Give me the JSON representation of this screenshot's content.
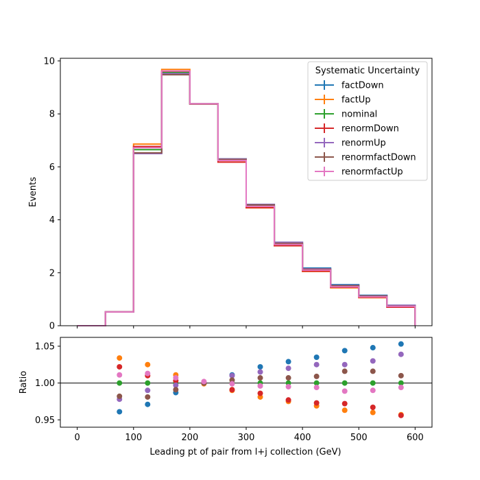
{
  "chart_data": [
    {
      "type": "step-histogram",
      "xlabel": "",
      "ylabel": "Events",
      "xlim": [
        -30,
        630
      ],
      "ylim": [
        0,
        10.1
      ],
      "xticks": [
        0,
        100,
        200,
        300,
        400,
        500,
        600
      ],
      "yticks": [
        0,
        2,
        4,
        6,
        8,
        10
      ],
      "bin_edges": [
        0,
        50,
        100,
        150,
        200,
        250,
        300,
        350,
        400,
        450,
        500,
        550,
        600
      ],
      "legend": {
        "title": "Systematic Uncertainty",
        "placement": "top-right"
      },
      "series": [
        {
          "name": "factDown",
          "color": "#1f77b4",
          "values": [
            0,
            0.52,
            6.52,
            9.5,
            8.38,
            6.3,
            4.58,
            3.15,
            2.18,
            1.55,
            1.15,
            0.77
          ]
        },
        {
          "name": "factUp",
          "color": "#ff7f0e",
          "values": [
            0,
            0.52,
            6.86,
            9.68,
            8.38,
            6.18,
            4.45,
            3.02,
            2.05,
            1.43,
            1.06,
            0.7
          ]
        },
        {
          "name": "nominal",
          "color": "#2ca02c",
          "values": [
            0,
            0.52,
            6.65,
            9.57,
            8.37,
            6.24,
            4.53,
            3.09,
            2.11,
            1.49,
            1.1,
            0.74
          ]
        },
        {
          "name": "renormDown",
          "color": "#d62728",
          "values": [
            0,
            0.52,
            6.77,
            9.61,
            8.37,
            6.18,
            4.46,
            3.02,
            2.06,
            1.45,
            1.07,
            0.7
          ]
        },
        {
          "name": "renormUp",
          "color": "#9467bd",
          "values": [
            0,
            0.52,
            6.5,
            9.52,
            8.38,
            6.3,
            4.58,
            3.15,
            2.15,
            1.52,
            1.13,
            0.77
          ]
        },
        {
          "name": "renormfactDown",
          "color": "#8c564b",
          "values": [
            0,
            0.52,
            6.53,
            9.48,
            8.38,
            6.28,
            4.56,
            3.11,
            2.13,
            1.51,
            1.12,
            0.74
          ]
        },
        {
          "name": "renormfactUp",
          "color": "#e377c2",
          "values": [
            0,
            0.52,
            6.72,
            9.62,
            8.38,
            6.24,
            4.51,
            3.07,
            2.1,
            1.47,
            1.09,
            0.73
          ]
        }
      ]
    },
    {
      "type": "scatter",
      "xlabel": "Leading pt of pair from l+j collection (GeV)",
      "ylabel": "Ratio",
      "xlim": [
        -30,
        630
      ],
      "ylim": [
        0.94,
        1.062
      ],
      "xticks": [
        0,
        100,
        200,
        300,
        400,
        500,
        600
      ],
      "yticks": [
        0.95,
        1.0,
        1.05
      ],
      "ytick_labels": [
        "0.95",
        "1.00",
        "1.05"
      ],
      "reference_line": 1.0,
      "x": [
        75,
        125,
        175,
        225,
        275,
        325,
        375,
        425,
        475,
        525,
        575
      ],
      "series": [
        {
          "name": "factDown",
          "color": "#1f77b4",
          "values": [
            0.961,
            0.971,
            0.987,
            1.0,
            1.011,
            1.022,
            1.029,
            1.035,
            1.044,
            1.048,
            1.053
          ]
        },
        {
          "name": "factUp",
          "color": "#ff7f0e",
          "values": [
            1.034,
            1.025,
            1.011,
            0.999,
            0.99,
            0.981,
            0.975,
            0.969,
            0.963,
            0.96,
            0.957
          ]
        },
        {
          "name": "nominal",
          "color": "#2ca02c",
          "values": [
            1.0,
            1.0,
            1.0,
            1.0,
            1.0,
            1.0,
            1.0,
            1.0,
            1.0,
            1.0,
            1.0
          ]
        },
        {
          "name": "renormDown",
          "color": "#d62728",
          "values": [
            1.022,
            1.01,
            1.003,
            1.0,
            0.991,
            0.986,
            0.977,
            0.973,
            0.972,
            0.967,
            0.956
          ]
        },
        {
          "name": "renormUp",
          "color": "#9467bd",
          "values": [
            0.978,
            0.99,
            0.997,
            1.001,
            1.01,
            1.015,
            1.02,
            1.025,
            1.025,
            1.03,
            1.039
          ]
        },
        {
          "name": "renormfactDown",
          "color": "#8c564b",
          "values": [
            0.982,
            0.981,
            0.991,
            1.0,
            1.004,
            1.007,
            1.007,
            1.009,
            1.016,
            1.016,
            1.01
          ]
        },
        {
          "name": "renormfactUp",
          "color": "#e377c2",
          "values": [
            1.011,
            1.013,
            1.007,
            1.002,
            0.999,
            0.996,
            0.995,
            0.994,
            0.989,
            0.99,
            0.994
          ]
        }
      ]
    }
  ]
}
